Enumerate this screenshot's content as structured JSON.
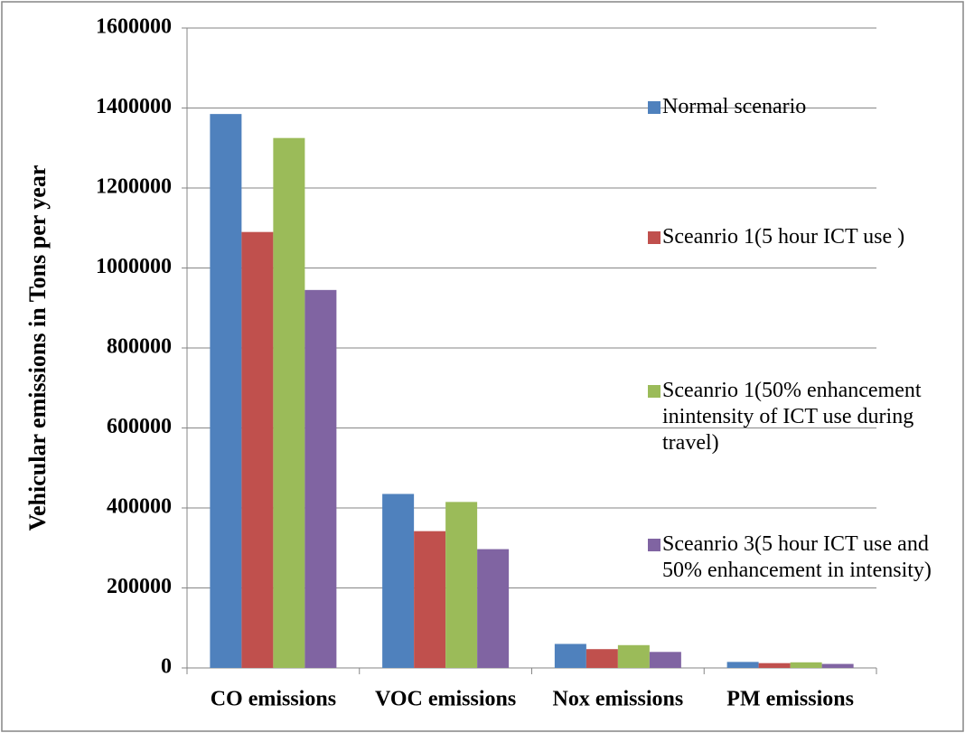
{
  "chart_data": {
    "type": "bar",
    "y_label": "Vehicular emissions in Tons per year",
    "categories": [
      "CO emissions",
      "VOC emissions",
      "Nox emissions",
      "PM emissions"
    ],
    "series": [
      {
        "name": "Normal scenario",
        "color": "#4f81bd",
        "values": [
          1385000,
          435000,
          60000,
          15000
        ]
      },
      {
        "name": "Sceanrio 1(5 hour ICT use )",
        "color": "#c0504d",
        "values": [
          1090000,
          342000,
          47000,
          12000
        ]
      },
      {
        "name": "Sceanrio 1(50% enhancement inintensity of ICT use during travel)",
        "color": "#9bbb59",
        "values": [
          1325000,
          415000,
          57000,
          14000
        ]
      },
      {
        "name": "Sceanrio 3(5 hour ICT use and 50% enhancement in intensity)",
        "color": "#8064a2",
        "values": [
          945000,
          297000,
          40000,
          10000
        ]
      }
    ],
    "ylim": [
      0,
      1600000
    ],
    "yticks": [
      0,
      200000,
      400000,
      600000,
      800000,
      1000000,
      1200000,
      1400000,
      1600000
    ],
    "grid": true,
    "legend": "right"
  }
}
